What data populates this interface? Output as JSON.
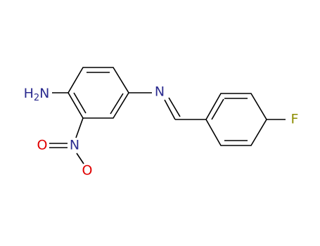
{
  "atoms": {
    "amine": {
      "parts": [
        "H",
        "2",
        "N"
      ]
    },
    "imine_n": "N",
    "nitro_n": "N",
    "nitro_o1": "O",
    "nitro_o2": "O",
    "fluorine": "F"
  }
}
